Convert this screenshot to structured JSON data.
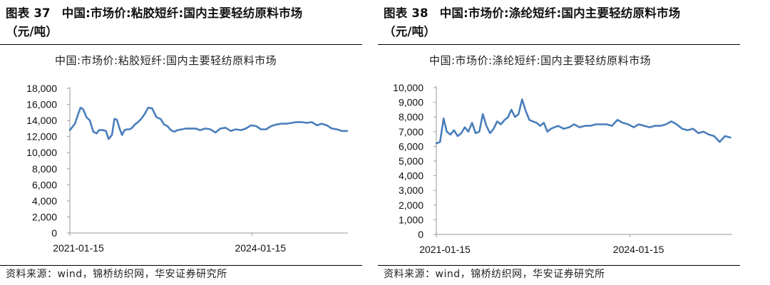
{
  "figures": [
    {
      "caption_prefix": "图表",
      "number": "37",
      "title": "中国:市场价:粘胶短纤:国内主要轻纺原料市场",
      "title_cont": "（元/吨）",
      "source": "资料来源：wind，锦桥纺织网，华安证券研究所",
      "chart_data": {
        "type": "line",
        "title": "中国:市场价:粘胶短纤:国内主要轻纺原料市场",
        "ylim": [
          0,
          18000
        ],
        "yticks": [
          "0",
          "2,000",
          "4,000",
          "6,000",
          "8,000",
          "10,000",
          "12,000",
          "14,000",
          "16,000",
          "18,000"
        ],
        "xticks": [
          "2021-01-15",
          "2024-01-15"
        ],
        "xrange": [
          "2021-01-15",
          "2025-08-15"
        ],
        "grid": false,
        "line_color": "#4a7ebb",
        "series": [
          {
            "x": [
              "2021-01-15",
              "2021-02-15",
              "2021-03-01",
              "2021-03-20",
              "2021-04-05",
              "2021-04-25",
              "2021-05-15",
              "2021-06-05",
              "2021-06-25",
              "2021-07-10",
              "2021-08-01",
              "2021-08-20",
              "2021-09-05",
              "2021-09-25",
              "2021-10-10",
              "2021-10-25",
              "2021-11-10",
              "2021-11-25",
              "2021-12-10",
              "2021-12-25",
              "2022-01-10",
              "2022-01-25",
              "2022-02-10",
              "2022-03-01",
              "2022-03-20",
              "2022-04-10",
              "2022-05-01",
              "2022-05-25",
              "2022-06-20",
              "2022-07-15",
              "2022-08-05",
              "2022-08-25",
              "2022-09-15",
              "2022-10-05",
              "2022-10-25",
              "2022-11-20",
              "2022-12-15",
              "2023-01-10",
              "2023-02-10",
              "2023-03-10",
              "2023-04-10",
              "2023-05-10",
              "2023-06-10",
              "2023-07-10",
              "2023-08-10",
              "2023-09-10",
              "2023-10-10",
              "2023-11-10",
              "2023-12-10",
              "2024-01-10",
              "2024-02-10",
              "2024-03-10",
              "2024-04-10",
              "2024-05-10",
              "2024-06-10",
              "2024-07-10",
              "2024-08-10",
              "2024-09-10",
              "2024-10-10",
              "2024-11-10",
              "2024-12-10",
              "2025-01-10",
              "2025-02-10",
              "2025-03-10",
              "2025-04-10",
              "2025-05-10",
              "2025-06-10",
              "2025-07-10",
              "2025-08-10"
            ],
            "y": [
              12800,
              13600,
              14500,
              15600,
              15400,
              14400,
              14000,
              12600,
              12400,
              12800,
              12800,
              12700,
              11700,
              12200,
              14200,
              14100,
              13000,
              12200,
              12800,
              12900,
              12900,
              13100,
              13500,
              13800,
              14200,
              14800,
              15600,
              15500,
              14400,
              14200,
              13500,
              13300,
              12800,
              12600,
              12800,
              12900,
              13000,
              13000,
              13000,
              12800,
              13000,
              12900,
              12500,
              13000,
              13100,
              12700,
              12900,
              12800,
              13000,
              13400,
              13300,
              12900,
              12900,
              13300,
              13500,
              13600,
              13600,
              13700,
              13800,
              13800,
              13700,
              13800,
              13400,
              13600,
              13400,
              13000,
              12900,
              12700,
              12700
            ]
          }
        ]
      }
    },
    {
      "caption_prefix": "图表",
      "number": "38",
      "title": "中国:市场价:涤纶短纤:国内主要轻纺原料市场",
      "title_cont": "（元/吨）",
      "source": "资料来源：wind，锦桥纺织网，华安证券研究所",
      "chart_data": {
        "type": "line",
        "title": "中国:市场价:涤纶短纤:国内主要轻纺原料市场",
        "ylim": [
          0,
          10000
        ],
        "yticks": [
          "0",
          "1,000",
          "2,000",
          "3,000",
          "4,000",
          "5,000",
          "6,000",
          "7,000",
          "8,000",
          "9,000",
          "10,000"
        ],
        "xticks": [
          "2021-01-15",
          "2024-01-15"
        ],
        "xrange": [
          "2021-01-15",
          "2025-08-15"
        ],
        "grid": false,
        "line_color": "#4a7ebb",
        "series": [
          {
            "x": [
              "2021-01-15",
              "2021-02-05",
              "2021-02-25",
              "2021-03-15",
              "2021-04-05",
              "2021-04-25",
              "2021-05-15",
              "2021-06-05",
              "2021-06-25",
              "2021-07-15",
              "2021-08-05",
              "2021-08-25",
              "2021-09-15",
              "2021-10-05",
              "2021-10-25",
              "2021-11-15",
              "2021-12-05",
              "2021-12-25",
              "2022-01-15",
              "2022-02-05",
              "2022-02-25",
              "2022-03-15",
              "2022-04-05",
              "2022-04-25",
              "2022-05-15",
              "2022-06-05",
              "2022-06-25",
              "2022-07-15",
              "2022-08-05",
              "2022-08-25",
              "2022-09-15",
              "2022-10-05",
              "2022-10-25",
              "2022-11-15",
              "2022-12-05",
              "2023-01-05",
              "2023-02-05",
              "2023-03-05",
              "2023-04-05",
              "2023-05-05",
              "2023-06-05",
              "2023-07-05",
              "2023-08-05",
              "2023-09-05",
              "2023-10-05",
              "2023-11-05",
              "2023-12-05",
              "2024-01-05",
              "2024-02-05",
              "2024-03-05",
              "2024-04-05",
              "2024-05-05",
              "2024-06-05",
              "2024-07-05",
              "2024-08-05",
              "2024-09-05",
              "2024-10-05",
              "2024-11-05",
              "2024-12-05",
              "2025-01-05",
              "2025-02-05",
              "2025-03-05",
              "2025-04-05",
              "2025-05-05",
              "2025-06-05",
              "2025-07-05",
              "2025-08-05"
            ],
            "y": [
              6200,
              6300,
              7900,
              7000,
              6800,
              7100,
              6700,
              6900,
              7300,
              7000,
              7600,
              6900,
              7000,
              8200,
              7400,
              6900,
              7200,
              7700,
              7500,
              7800,
              8000,
              8500,
              8000,
              8200,
              9200,
              8400,
              7800,
              7700,
              7600,
              7400,
              7600,
              7000,
              7200,
              7300,
              7400,
              7200,
              7300,
              7500,
              7300,
              7400,
              7400,
              7500,
              7500,
              7500,
              7400,
              7800,
              7600,
              7500,
              7300,
              7500,
              7400,
              7300,
              7400,
              7400,
              7500,
              7700,
              7500,
              7200,
              7100,
              7200,
              6900,
              7000,
              6800,
              6700,
              6300,
              6700,
              6600
            ]
          }
        ]
      }
    }
  ]
}
